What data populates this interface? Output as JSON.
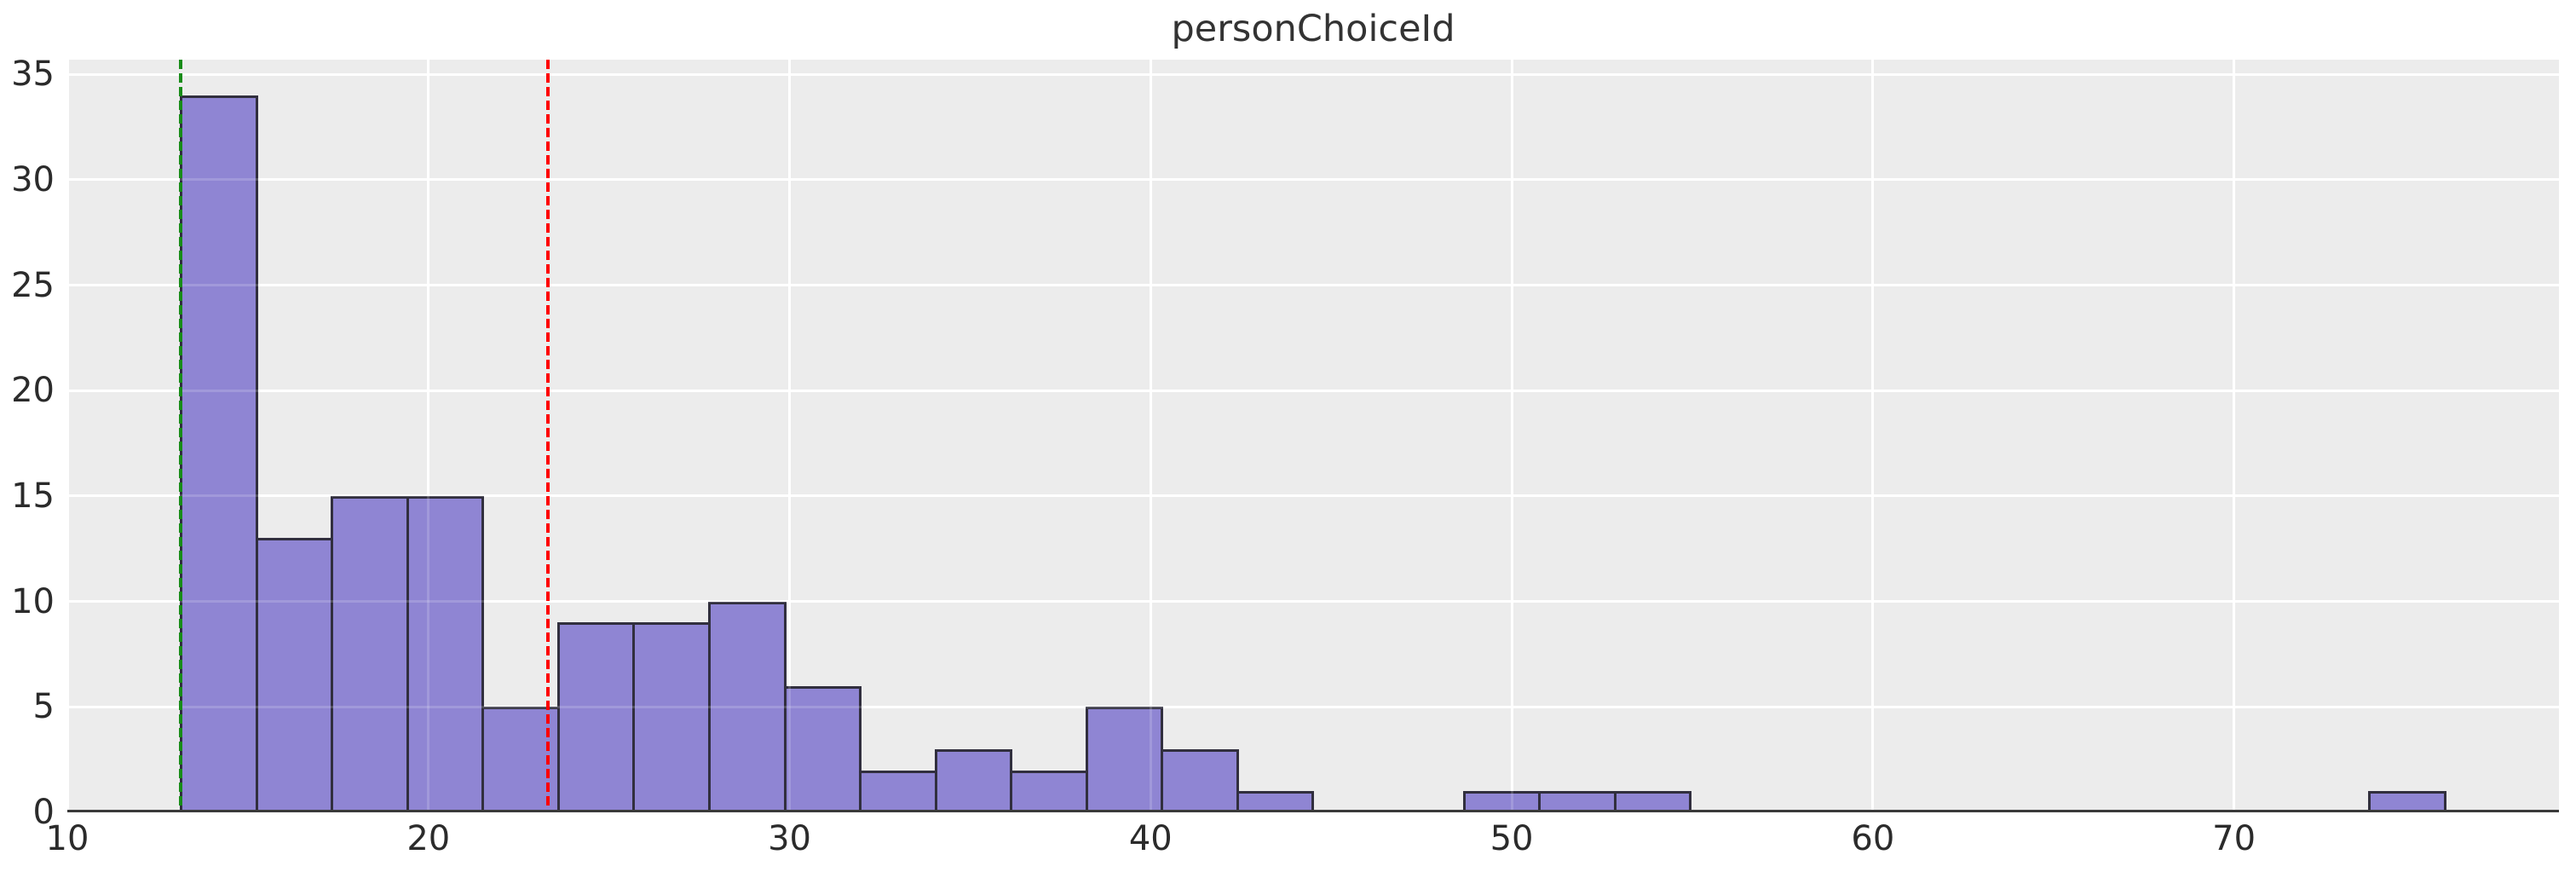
{
  "title": "personChoiceId",
  "colors": {
    "figure_background": "#FFFFFF",
    "plot_background": "#ECECEC",
    "gridline": "#FFFFFF",
    "bar_fill": "#8F85D3",
    "bar_edge": "#312F3E",
    "axis_spine": "#3A3A3A",
    "tick_label_text": "#2B2B2B",
    "title_text": "#333333",
    "vline_green": "#188C18",
    "vline_red": "#FF0000"
  },
  "chart_data": {
    "type": "bar",
    "subtype": "histogram",
    "title": "personChoiceId",
    "xlabel": "",
    "ylabel": "",
    "bin_start": 13.15,
    "bin_width": 2.09,
    "bin_count": 30,
    "counts": [
      34,
      13,
      15,
      15,
      5,
      9,
      9,
      10,
      6,
      2,
      3,
      2,
      5,
      3,
      1,
      0,
      0,
      1,
      1,
      1,
      0,
      0,
      0,
      0,
      0,
      0,
      0,
      0,
      0,
      1
    ],
    "xlim": [
      10.0,
      79.0
    ],
    "ylim": [
      0,
      35.7
    ],
    "xticks": [
      10,
      20,
      30,
      40,
      50,
      60,
      70
    ],
    "yticks": [
      0,
      5,
      10,
      15,
      20,
      25,
      30,
      35
    ],
    "grid": true,
    "legend": false,
    "reference_lines": [
      {
        "x": 13.15,
        "color": "#188C18",
        "style": "dashed"
      },
      {
        "x": 23.3,
        "color": "#FF0000",
        "style": "dashed"
      }
    ]
  }
}
